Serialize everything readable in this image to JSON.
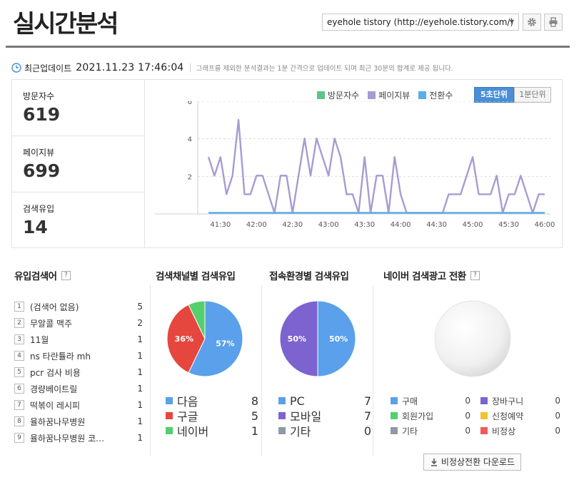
{
  "header": {
    "title": "실시간분석",
    "site_select": "eyehole tistory (http://eyehole.tistory.com/)"
  },
  "icons": {
    "settings": "gear-icon",
    "print": "print-icon",
    "clock": "clock-icon",
    "download": "download-icon"
  },
  "update": {
    "label": "최근업데이트",
    "time": "2021.11.23 17:46:04",
    "note": "그래프를 제외한 분석결과는 1분 간격으로 업데이트 되며 최근 30분의 합계로 제공 됩니다."
  },
  "stats": [
    {
      "label": "방문자수",
      "value": "619"
    },
    {
      "label": "페이지뷰",
      "value": "699"
    },
    {
      "label": "검색유입",
      "value": "14"
    }
  ],
  "chart_controls": {
    "legend": [
      {
        "name": "방문자수",
        "color": "#5cc585"
      },
      {
        "name": "페이지뷰",
        "color": "#a89bd1"
      },
      {
        "name": "전환수",
        "color": "#5aaeea"
      }
    ],
    "unit_5s": "5초단위",
    "unit_1m": "1분단위"
  },
  "chart_data": {
    "type": "line",
    "x_ticks": [
      "41:30",
      "42:00",
      "42:30",
      "43:00",
      "43:30",
      "44:00",
      "44:30",
      "45:00",
      "45:30",
      "46:00"
    ],
    "y_ticks": [
      "2",
      "4",
      "6"
    ],
    "ylim": [
      0,
      6
    ],
    "grid": true,
    "series": [
      {
        "name": "페이지뷰",
        "color": "#a89bd1",
        "values": [
          3,
          2,
          3,
          1,
          2,
          5,
          1,
          1,
          2,
          2,
          1,
          0,
          2,
          2,
          0,
          2,
          4,
          2,
          4,
          3,
          2,
          4,
          3,
          1,
          1,
          0,
          3,
          0,
          2,
          2,
          0,
          3,
          1,
          0,
          0,
          0,
          0,
          0,
          0,
          0,
          1,
          1,
          1,
          2,
          3,
          1,
          1,
          1,
          2,
          0,
          1,
          1,
          2,
          1,
          0,
          1,
          1
        ]
      },
      {
        "name": "전환수",
        "color": "#5aaeea",
        "values": [
          0,
          0,
          0,
          0,
          0,
          0,
          0,
          0,
          0,
          0,
          0,
          0,
          0,
          0,
          0,
          0,
          0,
          0,
          0,
          0,
          0,
          0,
          0,
          0,
          0,
          0,
          0,
          0,
          0,
          0,
          0,
          0,
          0,
          0,
          0,
          0,
          0,
          0,
          0,
          0,
          0,
          0,
          0,
          0,
          0,
          0,
          0,
          0,
          0,
          0,
          0,
          0,
          0,
          0,
          0,
          0,
          0
        ]
      }
    ]
  },
  "keywords": {
    "title": "유입검색어",
    "items": [
      {
        "rank": "1",
        "text": "(검색어 없음)",
        "count": "5"
      },
      {
        "rank": "2",
        "text": "무알콜 맥주",
        "count": "2"
      },
      {
        "rank": "3",
        "text": "11월",
        "count": "1"
      },
      {
        "rank": "4",
        "text": "ns 타란튤라 mh",
        "count": "1"
      },
      {
        "rank": "5",
        "text": "pcr 검사 비용",
        "count": "1"
      },
      {
        "rank": "6",
        "text": "경량베이트릴",
        "count": "1"
      },
      {
        "rank": "7",
        "text": "떡볶이 레시피",
        "count": "1"
      },
      {
        "rank": "8",
        "text": "율하꿈나무병원",
        "count": "1"
      },
      {
        "rank": "9",
        "text": "율하꿈나무병원 코…",
        "count": "1"
      }
    ]
  },
  "search_channel": {
    "title": "검색채널별 검색유입",
    "slices": [
      {
        "label": "다음",
        "value": 8,
        "value_text": "8",
        "pct": "57%",
        "color": "#5aa0ea"
      },
      {
        "label": "구글",
        "value": 5,
        "value_text": "5",
        "pct": "36%",
        "color": "#e5463e"
      },
      {
        "label": "네이버",
        "value": 1,
        "value_text": "1",
        "pct": "",
        "color": "#53cf6d"
      }
    ]
  },
  "environment": {
    "title": "접속환경별 검색유입",
    "slices": [
      {
        "label": "PC",
        "value": 7,
        "value_text": "7",
        "pct": "50%",
        "color": "#5aa0ea"
      },
      {
        "label": "모바일",
        "value": 7,
        "value_text": "7",
        "pct": "50%",
        "color": "#7d63cf"
      },
      {
        "label": "기타",
        "value": 0,
        "value_text": "0",
        "pct": "",
        "color": "#8e9aa6"
      }
    ]
  },
  "naver_ad": {
    "title": "네이버 검색광고 전환",
    "items": [
      {
        "label": "구매",
        "value": "0",
        "color": "#5aa0ea"
      },
      {
        "label": "장바구니",
        "value": "0",
        "color": "#7d63cf"
      },
      {
        "label": "회원가입",
        "value": "0",
        "color": "#53cf6d"
      },
      {
        "label": "신청예약",
        "value": "0",
        "color": "#f2c12e"
      },
      {
        "label": "기타",
        "value": "0",
        "color": "#8e9aa6"
      },
      {
        "label": "비정상",
        "value": "0",
        "color": "#f05a5a"
      }
    ],
    "download_label": "비정상전환 다운로드"
  }
}
